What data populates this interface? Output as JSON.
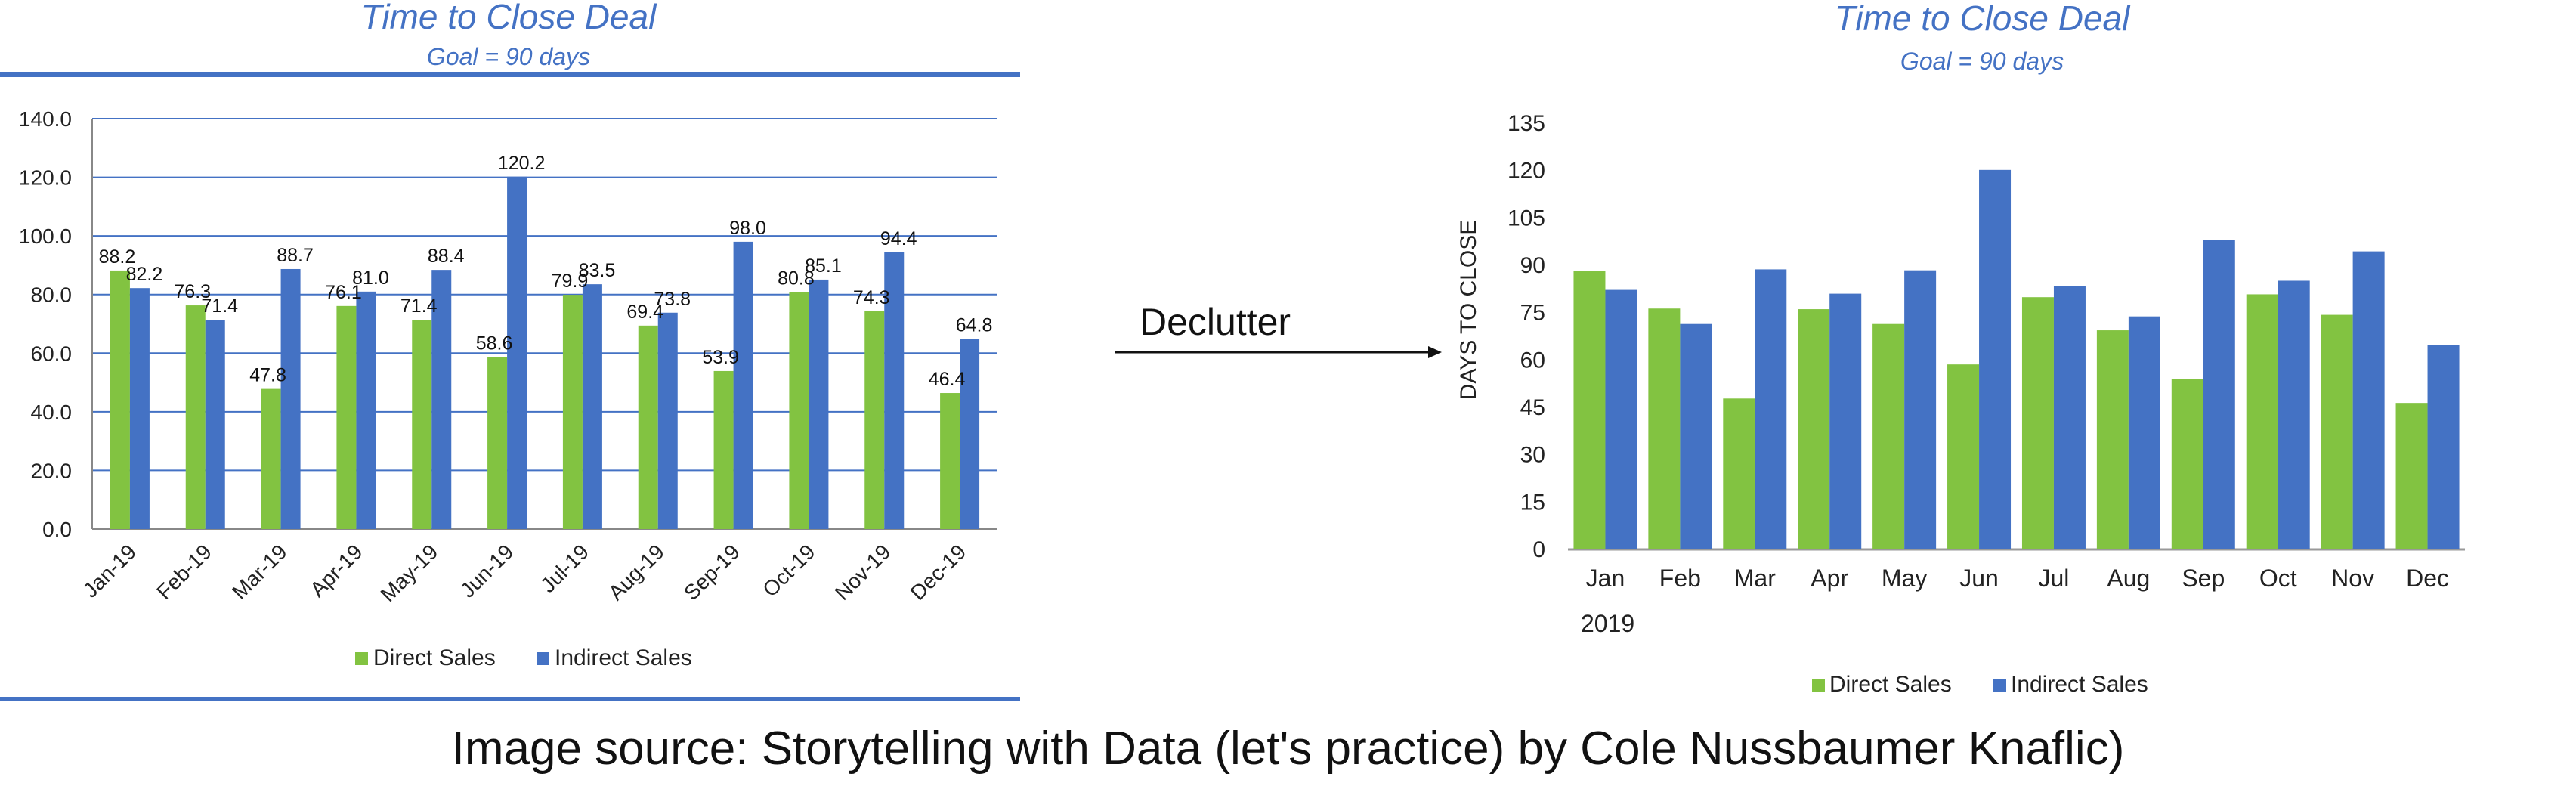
{
  "annotation": {
    "declutter_label": "Declutter"
  },
  "caption": "Image source: Storytelling with Data (let's practice) by Cole Nussbaumer Knaflic)",
  "colors": {
    "direct": "#82c341",
    "indirect": "#4472c4",
    "title": "#4472c4",
    "grid": "#4472c4"
  },
  "chart_data": [
    {
      "type": "bar",
      "title": "Time to Close Deal",
      "subtitle": "Goal = 90 days",
      "categories": [
        "Jan-19",
        "Feb-19",
        "Mar-19",
        "Apr-19",
        "May-19",
        "Jun-19",
        "Jul-19",
        "Aug-19",
        "Sep-19",
        "Oct-19",
        "Nov-19",
        "Dec-19"
      ],
      "series": [
        {
          "name": "Direct Sales",
          "values": [
            88.2,
            76.3,
            47.8,
            76.1,
            71.4,
            58.6,
            79.9,
            69.4,
            53.9,
            80.8,
            74.3,
            46.4
          ]
        },
        {
          "name": "Indirect Sales",
          "values": [
            82.2,
            71.4,
            88.7,
            81.0,
            88.4,
            120.2,
            83.5,
            73.8,
            98.0,
            85.1,
            94.4,
            64.8
          ]
        }
      ],
      "yticks": [
        "0.0",
        "20.0",
        "40.0",
        "60.0",
        "80.0",
        "100.0",
        "120.0",
        "140.0"
      ],
      "ylim": [
        0,
        140
      ],
      "grid": true,
      "data_labels": true,
      "legend": "bottom"
    },
    {
      "type": "bar",
      "title": "Time to Close Deal",
      "subtitle": "Goal = 90 days",
      "categories": [
        "Jan",
        "Feb",
        "Mar",
        "Apr",
        "May",
        "Jun",
        "Jul",
        "Aug",
        "Sep",
        "Oct",
        "Nov",
        "Dec"
      ],
      "year_label": "2019",
      "ylabel": "DAYS TO CLOSE",
      "series": [
        {
          "name": "Direct Sales",
          "values": [
            88.2,
            76.3,
            47.8,
            76.1,
            71.4,
            58.6,
            79.9,
            69.4,
            53.9,
            80.8,
            74.3,
            46.4
          ]
        },
        {
          "name": "Indirect Sales",
          "values": [
            82.2,
            71.4,
            88.7,
            81.0,
            88.4,
            120.2,
            83.5,
            73.8,
            98.0,
            85.1,
            94.4,
            64.8
          ]
        }
      ],
      "yticks": [
        "0",
        "15",
        "30",
        "45",
        "60",
        "75",
        "90",
        "105",
        "120",
        "135"
      ],
      "ylim": [
        0,
        135
      ],
      "grid": false,
      "data_labels": false,
      "legend": "bottom"
    }
  ]
}
